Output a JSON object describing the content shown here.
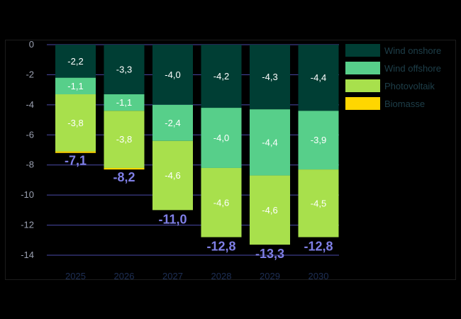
{
  "chart_data": {
    "type": "bar",
    "stacked": true,
    "categories": [
      "2025",
      "2026",
      "2027",
      "2028",
      "2029",
      "2030"
    ],
    "series": [
      {
        "name": "Wind onshore",
        "color": "#003e34",
        "values": [
          -2.2,
          -3.3,
          -4.0,
          -4.2,
          -4.3,
          -4.4
        ],
        "labels": [
          "-2,2",
          "-3,3",
          "-4,0",
          "-4,2",
          "-4,3",
          "-4,4"
        ]
      },
      {
        "name": "Wind offshore",
        "color": "#57cf8a",
        "values": [
          -1.1,
          -1.1,
          -2.4,
          -4.0,
          -4.4,
          -3.9
        ],
        "labels": [
          "-1,1",
          "-1,1",
          "-2,4",
          "-4,0",
          "-4,4",
          "-3,9"
        ]
      },
      {
        "name": "Photovoltaik",
        "color": "#a8e04c",
        "values": [
          -3.8,
          -3.8,
          -4.6,
          -4.6,
          -4.6,
          -4.5
        ],
        "labels": [
          "-3,8",
          "-3,8",
          "-4,6",
          "-4,6",
          "-4,6",
          "-4,5"
        ]
      },
      {
        "name": "Biomasse",
        "color": "#ffd600",
        "values": [
          -0.1,
          -0.1,
          0,
          0,
          0,
          0
        ],
        "labels": [
          "",
          "",
          "",
          "",
          "",
          ""
        ]
      }
    ],
    "totals": [
      -7.1,
      -8.2,
      -11.0,
      -12.8,
      -13.3,
      -12.8
    ],
    "total_labels": [
      "-7,1",
      "-8,2",
      "-11,0",
      "-12,8",
      "-13,3",
      "-12,8"
    ],
    "yticks": [
      0,
      -2,
      -4,
      -6,
      -8,
      -10,
      -12,
      -14
    ],
    "ytick_labels": [
      "0",
      "-2",
      "-4",
      "-6",
      "-8",
      "-10",
      "-12",
      "-14"
    ],
    "ylim": [
      -14,
      0
    ],
    "grid": true,
    "legend": "right",
    "gridline_color": "#4a4aa8",
    "total_label_color": "#7f7fe6"
  }
}
